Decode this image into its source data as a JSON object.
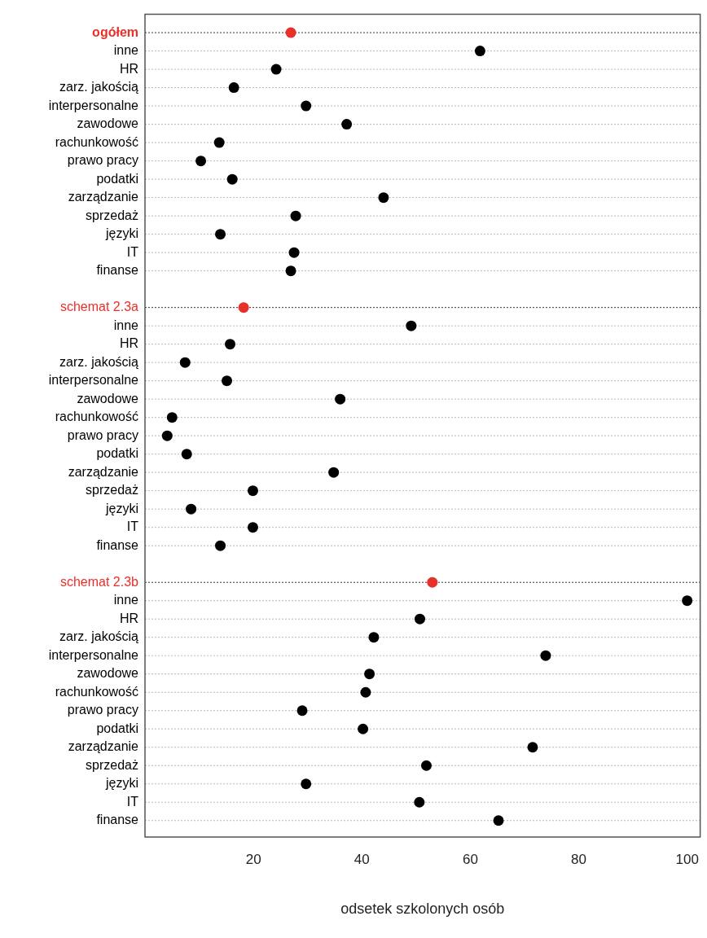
{
  "chart_data": {
    "type": "scatter",
    "orientation": "horizontal",
    "xlabel": "odsetek szkolonych osób",
    "categories": [
      "ogółem",
      "inne",
      "HR",
      "zarz. jakością",
      "interpersonalne",
      "zawodowe",
      "rachunkowość",
      "prawo pracy",
      "podatki",
      "zarządzanie",
      "sprzedaż",
      "języki",
      "IT",
      "finanse",
      null,
      "schemat 2.3a",
      "inne",
      "HR",
      "zarz. jakością",
      "interpersonalne",
      "zawodowe",
      "rachunkowość",
      "prawo pracy",
      "podatki",
      "zarządzanie",
      "sprzedaż",
      "języki",
      "IT",
      "finanse",
      null,
      "schemat 2.3b",
      "inne",
      "HR",
      "zarz. jakością",
      "interpersonalne",
      "zawodowe",
      "rachunkowość",
      "prawo pracy",
      "podatki",
      "zarządzanie",
      "sprzedaż",
      "języki",
      "IT",
      "finanse"
    ],
    "values": [
      26.9,
      61.8,
      24.2,
      16.4,
      29.7,
      37.2,
      13.7,
      10.3,
      16.1,
      44.0,
      27.8,
      13.9,
      27.5,
      26.9,
      null,
      18.2,
      49.1,
      15.7,
      7.4,
      15.1,
      36.0,
      5.0,
      4.1,
      7.7,
      34.8,
      19.9,
      8.5,
      19.9,
      13.9,
      null,
      53.0,
      100,
      50.7,
      42.2,
      73.9,
      41.4,
      40.7,
      29.0,
      40.2,
      71.5,
      51.9,
      29.7,
      50.6,
      65.2
    ],
    "colors": [
      "#e8302a",
      "#000000",
      "#000000",
      "#000000",
      "#000000",
      "#000000",
      "#000000",
      "#000000",
      "#000000",
      "#000000",
      "#000000",
      "#000000",
      "#000000",
      "#000000",
      null,
      "#e8302a",
      "#000000",
      "#000000",
      "#000000",
      "#000000",
      "#000000",
      "#000000",
      "#000000",
      "#000000",
      "#000000",
      "#000000",
      "#000000",
      "#000000",
      "#000000",
      null,
      "#e8302a",
      "#000000",
      "#000000",
      "#000000",
      "#000000",
      "#000000",
      "#000000",
      "#000000",
      "#000000",
      "#000000",
      "#000000",
      "#000000",
      "#000000",
      "#000000"
    ],
    "xlim": [
      0,
      102.4
    ],
    "xticks": [
      20,
      40,
      60,
      80,
      100
    ],
    "grid": "y",
    "marker": "circle",
    "legend": false
  }
}
